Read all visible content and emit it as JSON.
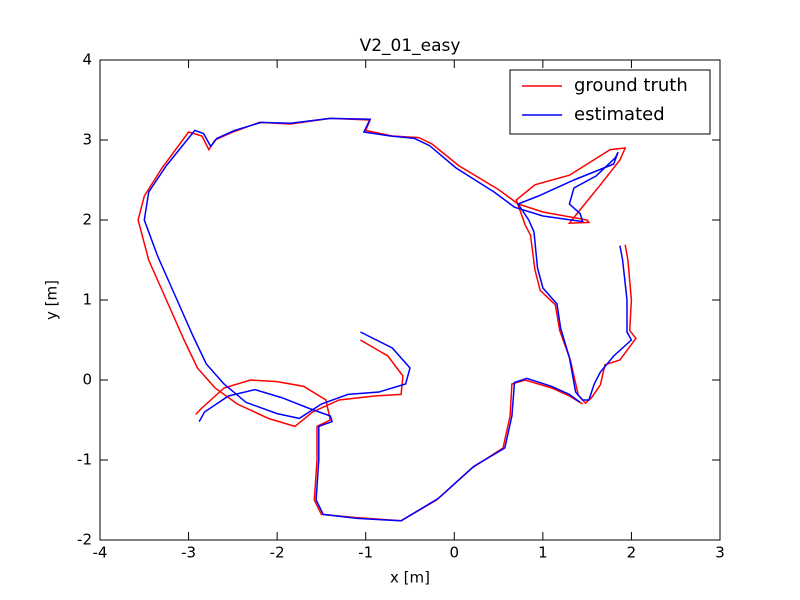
{
  "chart_data": {
    "type": "line",
    "title": "V2_01_easy",
    "x_label": "x [m]",
    "y_label": "y [m]",
    "xlim": [
      -4,
      3
    ],
    "xticks": [
      -4,
      -3,
      -2,
      -1,
      0,
      1,
      2,
      3
    ],
    "ylim": [
      -2,
      4
    ],
    "yticks": [
      -2,
      -1,
      0,
      1,
      2,
      3,
      4
    ],
    "legend": "upper right",
    "series": [
      {
        "name": "ground truth",
        "color": "#ff0000",
        "x": [
          -1.06,
          -0.75,
          -0.58,
          -0.6,
          -0.9,
          -1.3,
          -1.6,
          -1.8,
          -2.1,
          -2.45,
          -2.7,
          -2.9,
          -3.05,
          -3.25,
          -3.45,
          -3.57,
          -3.5,
          -3.3,
          -3.0,
          -2.85,
          -2.77,
          -2.7,
          -2.5,
          -2.2,
          -1.85,
          -1.4,
          -0.95,
          -1.0,
          -0.7,
          -0.4,
          -0.25,
          0.05,
          0.5,
          0.72,
          1.0,
          1.5,
          1.52,
          1.3,
          1.4,
          1.65,
          1.87,
          1.93,
          1.76,
          1.3,
          0.91,
          0.7,
          0.8,
          0.86,
          0.91,
          0.97,
          1.14,
          1.19,
          1.31,
          1.4,
          1.48,
          1.55,
          1.65,
          1.7,
          1.87,
          2.05,
          1.98,
          2.0,
          1.96,
          1.93,
          null,
          -2.92,
          -2.85,
          -2.6,
          -2.3,
          -2.0,
          -1.7,
          -1.45,
          -1.4,
          -1.55,
          -1.55,
          -1.58,
          -1.5,
          -1.1,
          -0.6,
          -0.2,
          0.2,
          0.55,
          0.63,
          0.65,
          0.8,
          1.1,
          1.3,
          1.45
        ],
        "values": [
          0.5,
          0.3,
          0.05,
          -0.18,
          -0.2,
          -0.25,
          -0.4,
          -0.58,
          -0.48,
          -0.3,
          -0.1,
          0.15,
          0.5,
          1.0,
          1.5,
          2.0,
          2.3,
          2.65,
          3.1,
          3.05,
          2.88,
          3.0,
          3.1,
          3.22,
          3.2,
          3.27,
          3.25,
          3.12,
          3.05,
          3.03,
          2.95,
          2.68,
          2.38,
          2.2,
          2.1,
          2.0,
          1.97,
          1.96,
          2.1,
          2.44,
          2.75,
          2.9,
          2.88,
          2.56,
          2.44,
          2.25,
          1.94,
          1.81,
          1.38,
          1.12,
          0.94,
          0.62,
          0.25,
          -0.19,
          -0.29,
          -0.22,
          -0.06,
          0.19,
          0.25,
          0.52,
          0.62,
          1.0,
          1.5,
          1.69,
          null,
          -0.43,
          -0.35,
          -0.1,
          0.0,
          -0.02,
          -0.08,
          -0.25,
          -0.5,
          -0.58,
          -1.0,
          -1.5,
          -1.68,
          -1.72,
          -1.76,
          -1.5,
          -1.1,
          -0.85,
          -0.45,
          -0.05,
          0.0,
          -0.1,
          -0.2,
          -0.3
        ]
      },
      {
        "name": "estimated",
        "color": "#0000ff",
        "x": [
          -1.06,
          -0.7,
          -0.5,
          -0.55,
          -0.85,
          -1.2,
          -1.5,
          -1.75,
          -2.0,
          -2.35,
          -2.6,
          -2.8,
          -2.95,
          -3.15,
          -3.35,
          -3.5,
          -3.45,
          -3.25,
          -2.93,
          -2.83,
          -2.75,
          -2.68,
          -2.48,
          -2.18,
          -1.85,
          -1.4,
          -0.95,
          -1.02,
          -0.72,
          -0.45,
          -0.28,
          0.02,
          0.45,
          0.68,
          1.0,
          1.45,
          1.42,
          1.3,
          1.35,
          1.6,
          1.82,
          1.85,
          1.8,
          1.35,
          0.95,
          0.72,
          0.84,
          0.9,
          0.94,
          1.0,
          1.16,
          1.2,
          1.3,
          1.37,
          1.45,
          1.52,
          1.58,
          1.65,
          1.8,
          2.0,
          1.95,
          1.95,
          1.9,
          1.87,
          null,
          -2.88,
          -2.82,
          -2.55,
          -2.25,
          -1.95,
          -1.65,
          -1.4,
          -1.38,
          -1.53,
          -1.53,
          -1.56,
          -1.48,
          -1.1,
          -0.6,
          -0.18,
          0.22,
          0.57,
          0.65,
          0.68,
          0.82,
          1.1,
          1.3,
          1.42
        ],
        "values": [
          0.6,
          0.4,
          0.15,
          -0.05,
          -0.15,
          -0.18,
          -0.3,
          -0.48,
          -0.42,
          -0.28,
          -0.05,
          0.2,
          0.55,
          1.05,
          1.55,
          2.0,
          2.35,
          2.68,
          3.12,
          3.08,
          2.92,
          3.02,
          3.12,
          3.22,
          3.21,
          3.27,
          3.26,
          3.1,
          3.05,
          3.02,
          2.93,
          2.65,
          2.35,
          2.16,
          2.05,
          1.98,
          2.08,
          2.2,
          2.4,
          2.55,
          2.78,
          2.85,
          2.7,
          2.5,
          2.3,
          2.2,
          2.0,
          1.85,
          1.4,
          1.15,
          0.95,
          0.65,
          0.28,
          -0.15,
          -0.25,
          -0.25,
          -0.05,
          0.1,
          0.3,
          0.5,
          0.6,
          1.0,
          1.5,
          1.68,
          null,
          -0.52,
          -0.4,
          -0.2,
          -0.12,
          -0.22,
          -0.35,
          -0.45,
          -0.52,
          -0.58,
          -1.0,
          -1.5,
          -1.68,
          -1.73,
          -1.76,
          -1.48,
          -1.08,
          -0.85,
          -0.45,
          -0.03,
          0.02,
          -0.08,
          -0.18,
          -0.28
        ]
      }
    ]
  }
}
